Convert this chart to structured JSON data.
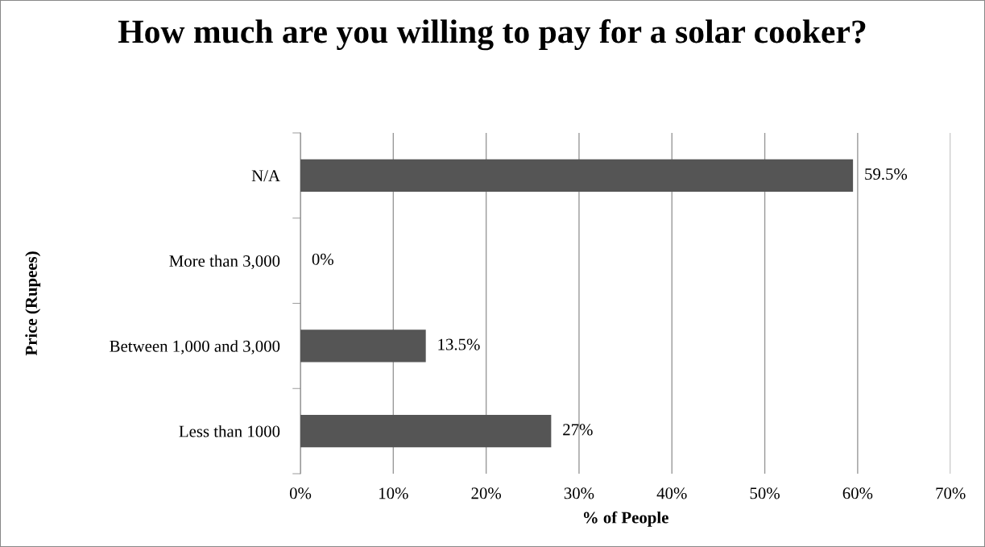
{
  "chart_data": {
    "type": "bar",
    "orientation": "horizontal",
    "title": "How much are you willing to pay for a solar cooker?",
    "xlabel": "% of People",
    "ylabel": "Price (Rupees)",
    "categories": [
      "N/A",
      "More than 3,000",
      "Between 1,000 and 3,000",
      "Less than 1000"
    ],
    "values": [
      59.5,
      0,
      13.5,
      27
    ],
    "color": "#555555",
    "value_labels": [
      "59.5%",
      "0%",
      "13.5%",
      "27%"
    ],
    "xlim": [
      0,
      70
    ],
    "xticks": [
      {
        "value": 0,
        "label": "0%"
      },
      {
        "value": 10,
        "label": "10%"
      },
      {
        "value": 20,
        "label": "20%"
      },
      {
        "value": 30,
        "label": "30%"
      },
      {
        "value": 40,
        "label": "40%"
      },
      {
        "value": 50,
        "label": "50%"
      },
      {
        "value": 60,
        "label": "60%"
      },
      {
        "value": 70,
        "label": "70%"
      }
    ],
    "grid": "x"
  }
}
